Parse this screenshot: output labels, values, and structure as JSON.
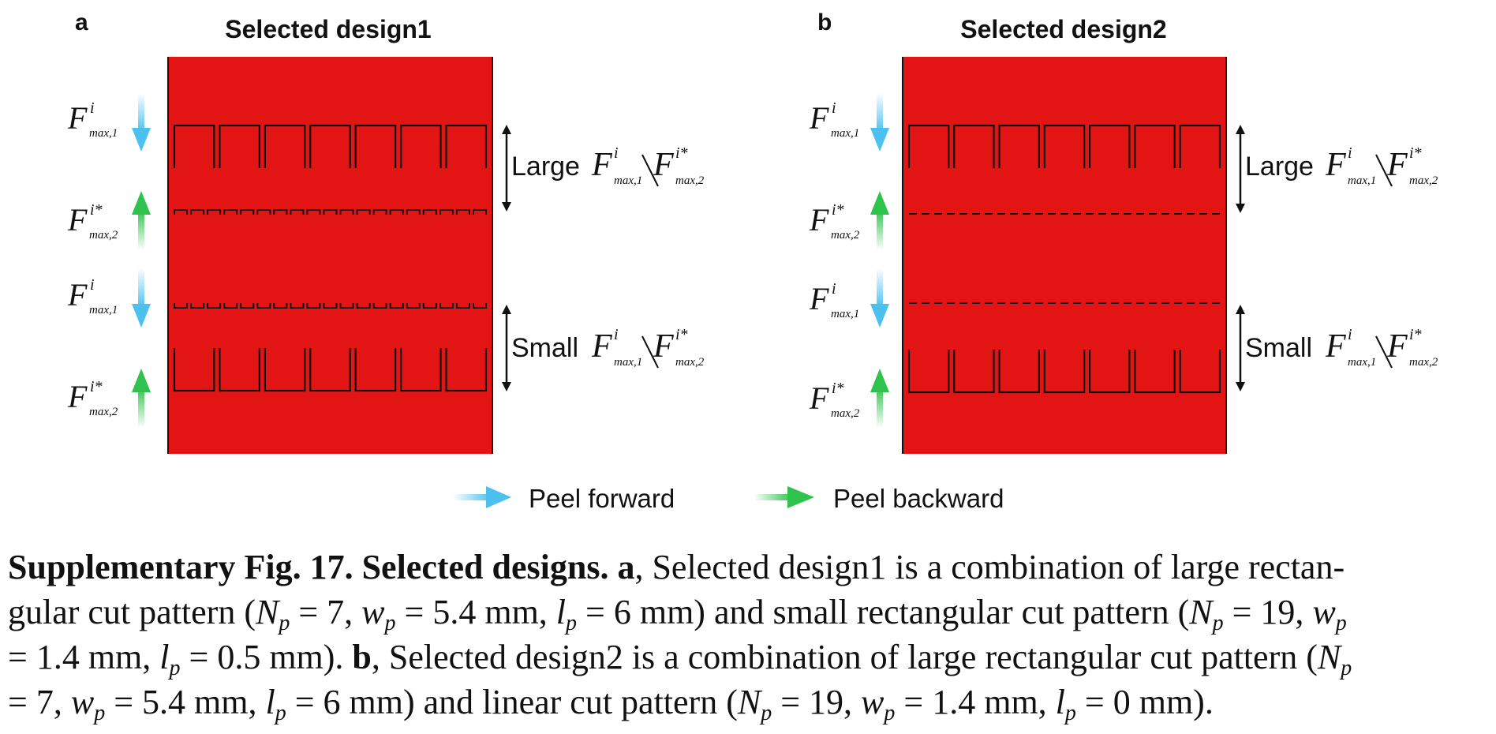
{
  "panels": [
    {
      "letter": "a",
      "title": "Selected design1",
      "large_label": "Large",
      "small_label": "Small"
    },
    {
      "letter": "b",
      "title": "Selected design2",
      "large_label": "Large",
      "small_label": "Small"
    }
  ],
  "force_symbol": "F",
  "force_sup": "i",
  "force_sup_star": "i*",
  "force_sub_1": "max,1",
  "force_sub_2": "max,2",
  "legend": {
    "forward": "Peel forward",
    "backward": "Peel backward"
  },
  "colors": {
    "panel_fill": "#e31414",
    "forward_arrow": "#4cc0ef",
    "backward_arrow": "#2fc24c"
  },
  "caption": {
    "fig_label": "Supplementary Fig. 17. Selected designs.",
    "a_label": "a",
    "a_text_1": ", Selected design1 is a combination of large rectan-",
    "a_text_2": "gular cut pattern (",
    "a_text_3": " = 7, ",
    "a_text_4": " = 5.4 mm, ",
    "a_text_5": " = 6 mm) and small rectangular cut pattern (",
    "a_text_6": " = 19, ",
    "a_text_7": "= 1.4 mm, ",
    "a_text_8": " = 0.5 mm). ",
    "b_label": "b",
    "b_text_1": ", Selected design2 is a combination of large rectangular cut pattern (",
    "b_text_2": "= 7, ",
    "b_text_3": " = 5.4 mm, ",
    "b_text_4": " = 6 mm) and linear cut pattern (",
    "b_text_5": " = 19, ",
    "b_text_6": " = 1.4 mm, ",
    "b_text_7": " = 0 mm).",
    "N": "N",
    "w": "w",
    "l": "l",
    "p": "p"
  }
}
